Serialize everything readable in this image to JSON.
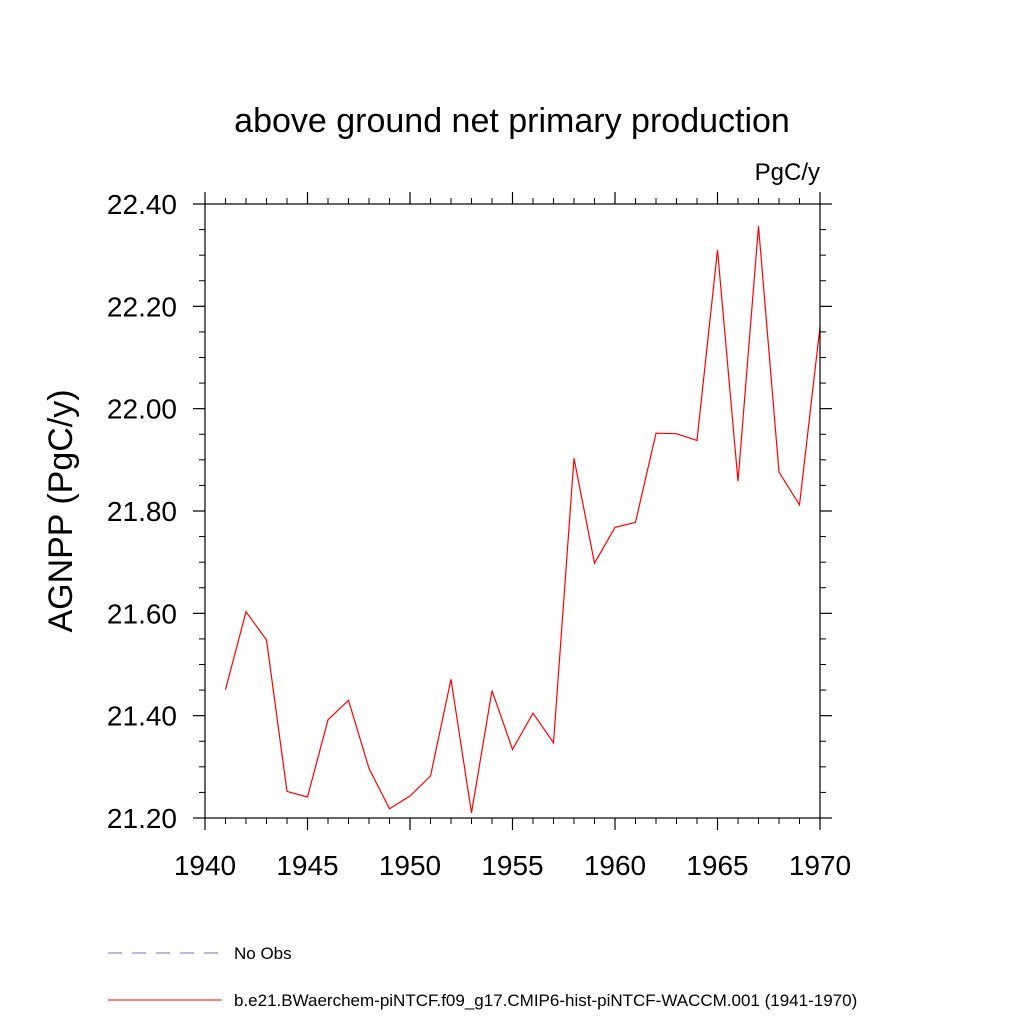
{
  "chart_data": {
    "type": "line",
    "title": "above ground net primary production",
    "units_label": "PgC/y",
    "ylabel": "AGNPP  (PgC/y)",
    "xlabel": "",
    "xlim": [
      1940,
      1970
    ],
    "ylim": [
      21.2,
      22.4
    ],
    "x_ticks": [
      1940,
      1945,
      1950,
      1955,
      1960,
      1965,
      1970
    ],
    "y_ticks": [
      21.2,
      21.4,
      21.6,
      21.8,
      22.0,
      22.2,
      22.4
    ],
    "x_tick_labels": [
      "1940",
      "1945",
      "1950",
      "1955",
      "1960",
      "1965",
      "1970"
    ],
    "y_tick_labels": [
      "21.20",
      "21.40",
      "21.60",
      "21.80",
      "22.00",
      "22.20",
      "22.40"
    ],
    "grid": false,
    "legend_position": "bottom-left",
    "series": [
      {
        "name": "b.e21.BWaerchem-piNTCF.f09_g17.CMIP6-hist-piNTCF-WACCM.001 (1941-1970)",
        "color": "#ff0000",
        "style": "solid",
        "x": [
          1941,
          1942,
          1943,
          1944,
          1945,
          1946,
          1947,
          1948,
          1949,
          1950,
          1951,
          1952,
          1953,
          1954,
          1955,
          1956,
          1957,
          1958,
          1959,
          1960,
          1961,
          1962,
          1963,
          1964,
          1965,
          1966,
          1967,
          1968,
          1969,
          1970
        ],
        "values": [
          21.451,
          21.603,
          21.548,
          21.252,
          21.241,
          21.392,
          21.43,
          21.297,
          21.218,
          21.243,
          21.282,
          21.471,
          21.21,
          21.449,
          21.334,
          21.405,
          21.347,
          21.903,
          21.698,
          21.768,
          21.778,
          21.952,
          21.951,
          21.938,
          22.31,
          21.858,
          22.357,
          21.876,
          21.812,
          22.16
        ]
      }
    ],
    "legend": [
      {
        "label": "No Obs",
        "color": "#7b68c8",
        "style": "dashed"
      },
      {
        "label": "b.e21.BWaerchem-piNTCF.f09_g17.CMIP6-hist-piNTCF-WACCM.001 (1941-1970)",
        "color": "#ff0000",
        "style": "solid"
      }
    ]
  }
}
